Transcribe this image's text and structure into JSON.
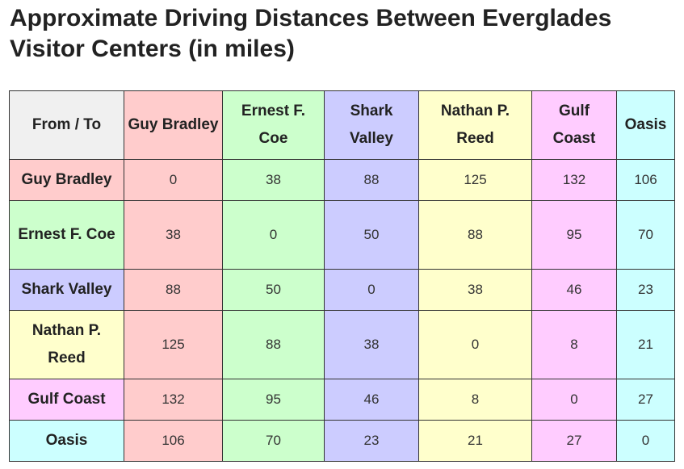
{
  "title": "Approximate Driving Distances Between Everglades Visitor Centers (in miles)",
  "table": {
    "corner_label": "From / To",
    "columns": [
      "Guy Bradley",
      "Ernest F. Coe",
      "Shark Valley",
      "Nathan P. Reed",
      "Gulf Coast",
      "Oasis"
    ],
    "rows": [
      {
        "label": "Guy Bradley",
        "values": [
          "0",
          "38",
          "88",
          "125",
          "132",
          "106"
        ]
      },
      {
        "label": "Ernest F. Coe",
        "values": [
          "38",
          "0",
          "50",
          "88",
          "95",
          "70"
        ]
      },
      {
        "label": "Shark Valley",
        "values": [
          "88",
          "50",
          "0",
          "38",
          "46",
          "23"
        ]
      },
      {
        "label": "Nathan P. Reed",
        "values": [
          "125",
          "88",
          "38",
          "0",
          "8",
          "21"
        ]
      },
      {
        "label": "Gulf Coast",
        "values": [
          "132",
          "95",
          "46",
          "8",
          "0",
          "27"
        ]
      },
      {
        "label": "Oasis",
        "values": [
          "106",
          "70",
          "23",
          "21",
          "27",
          "0"
        ]
      }
    ]
  },
  "colors": {
    "corner": "#f0f0f0",
    "guy_bradley": "#ffcccc",
    "ernest_f_coe": "#ccffcc",
    "shark_valley": "#ccccff",
    "nathan_p_reed": "#ffffcc",
    "gulf_coast": "#ffccff",
    "oasis": "#ccffff",
    "border": "#333333"
  }
}
